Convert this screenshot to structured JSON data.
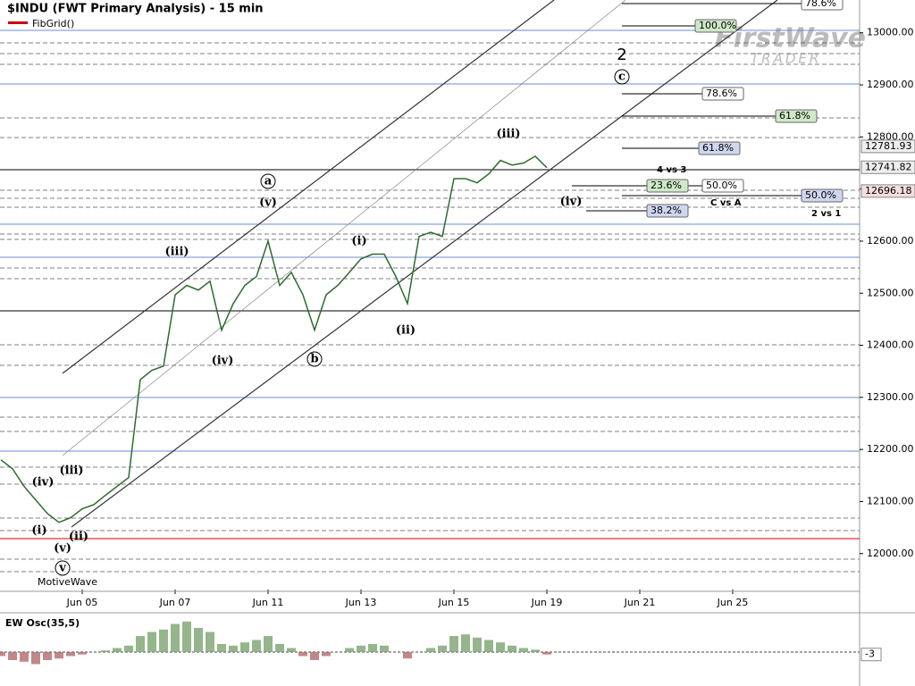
{
  "chart_data": {
    "type": "line",
    "title": "$INDU (FWT Primary Analysis) - 15 min",
    "indicator": "FibGrid()",
    "logo": "FirstWave",
    "logo_sub": "TRADER",
    "watermark": "MotiveWave",
    "categories": [
      null,
      null,
      null,
      null,
      null,
      null,
      null,
      "Jun 05",
      null,
      null,
      null,
      null,
      null,
      null,
      null,
      "Jun 07",
      null,
      null,
      null,
      null,
      null,
      null,
      null,
      "Jun 11",
      null,
      null,
      null,
      null,
      null,
      null,
      null,
      "Jun 13",
      null,
      null,
      null,
      null,
      null,
      null,
      null,
      "Jun 15",
      null,
      null,
      null,
      null,
      null,
      null,
      null,
      "Jun 19",
      null,
      null,
      null,
      null,
      null,
      null,
      null,
      "Jun 21",
      null,
      null,
      null,
      null,
      null,
      null,
      null,
      "Jun 25",
      null,
      null,
      null,
      null,
      null,
      null,
      null,
      null
    ],
    "series": [
      {
        "name": "$INDU",
        "color": "#2e6b2e",
        "values": [
          12180,
          12163,
          12129,
          12103,
          12077,
          12060,
          12069,
          12086,
          12094,
          12112,
          12129,
          12146,
          12334,
          12352,
          12360,
          12497,
          12515,
          12506,
          12523,
          12429,
          12480,
          12515,
          12532,
          12600,
          12515,
          12540,
          12497,
          12429,
          12497,
          12515,
          12540,
          12566,
          12575,
          12575,
          12532,
          12480,
          12609,
          12617,
          12609,
          12720,
          12720,
          12712,
          12729,
          12755,
          12746,
          12750,
          12763,
          12741,
          null,
          null,
          null,
          null,
          null,
          null,
          null,
          null,
          null,
          null,
          null,
          null,
          null,
          null,
          null,
          null,
          null,
          null,
          null,
          null,
          null,
          null,
          null,
          null
        ]
      }
    ],
    "ylim": [
      11931,
      13063
    ],
    "yticks": [
      {
        "value": 12000,
        "label": "12000.00"
      },
      {
        "value": 12100,
        "label": "12100.00"
      },
      {
        "value": 12200,
        "label": "12200.00"
      },
      {
        "value": 12300,
        "label": "12300.00"
      },
      {
        "value": 12400,
        "label": "12400.00"
      },
      {
        "value": 12500,
        "label": "12500.00"
      },
      {
        "value": 12600,
        "label": "12600.00"
      },
      {
        "value": 12700,
        "label": "12700.00"
      },
      {
        "value": 12800,
        "label": "12800.00"
      },
      {
        "value": 12900,
        "label": "12900.00"
      },
      {
        "value": 13000,
        "label": "13000.00"
      }
    ],
    "price_tags": [
      {
        "value": 12781.93,
        "label": "12781.93"
      },
      {
        "value": 12741.82,
        "label": "12741.82"
      },
      {
        "value": 12696.18,
        "label": "12696.18"
      }
    ],
    "wave_labels": [
      "(iv)",
      "(iii)",
      "(v)",
      "v",
      "(ii)",
      "(i)",
      "(iii)",
      "(iv)",
      "(v)",
      "a",
      "(i)",
      "b",
      "(ii)",
      "(iii)",
      "(iv)",
      "c",
      "2"
    ],
    "fib_labels": [
      "78.6%",
      "100.0%",
      "78.6%",
      "61.8%",
      "61.8%",
      "4 vs 3",
      "23.6%",
      "50.0%",
      "50.0%",
      "C vs A",
      "38.2%",
      "2 vs 1"
    ],
    "oscillator": {
      "title": "EW Osc(35,5)",
      "ylim": [
        -40,
        40
      ],
      "values": [
        -5,
        -10,
        -12,
        -15,
        -10,
        -8,
        -5,
        -3,
        0,
        2,
        5,
        8,
        20,
        25,
        28,
        35,
        38,
        30,
        25,
        10,
        8,
        12,
        15,
        20,
        10,
        5,
        -5,
        -10,
        -5,
        0,
        5,
        8,
        10,
        8,
        0,
        -8,
        0,
        5,
        8,
        20,
        22,
        18,
        15,
        12,
        8,
        5,
        3,
        -3
      ],
      "tag": -3
    }
  }
}
